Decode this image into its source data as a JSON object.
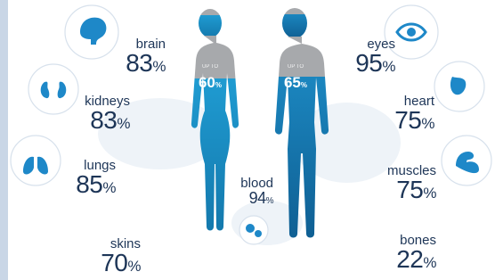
{
  "organs": [
    {
      "label": "brain",
      "value": 83,
      "unit": "%"
    },
    {
      "label": "kidneys",
      "value": 83,
      "unit": "%"
    },
    {
      "label": "lungs",
      "value": 85,
      "unit": "%"
    },
    {
      "label": "skins",
      "value": 70,
      "unit": "%"
    },
    {
      "label": "eyes",
      "value": 95,
      "unit": "%"
    },
    {
      "label": "heart",
      "value": 75,
      "unit": "%"
    },
    {
      "label": "muscles",
      "value": 75,
      "unit": "%"
    },
    {
      "label": "bones",
      "value": 22,
      "unit": "%"
    },
    {
      "label": "blood",
      "value": 94,
      "unit": "%"
    }
  ],
  "figures": [
    {
      "caption": "UP TO",
      "value": 60,
      "unit": "%"
    },
    {
      "caption": "UP TO",
      "value": 65,
      "unit": "%"
    }
  ]
}
